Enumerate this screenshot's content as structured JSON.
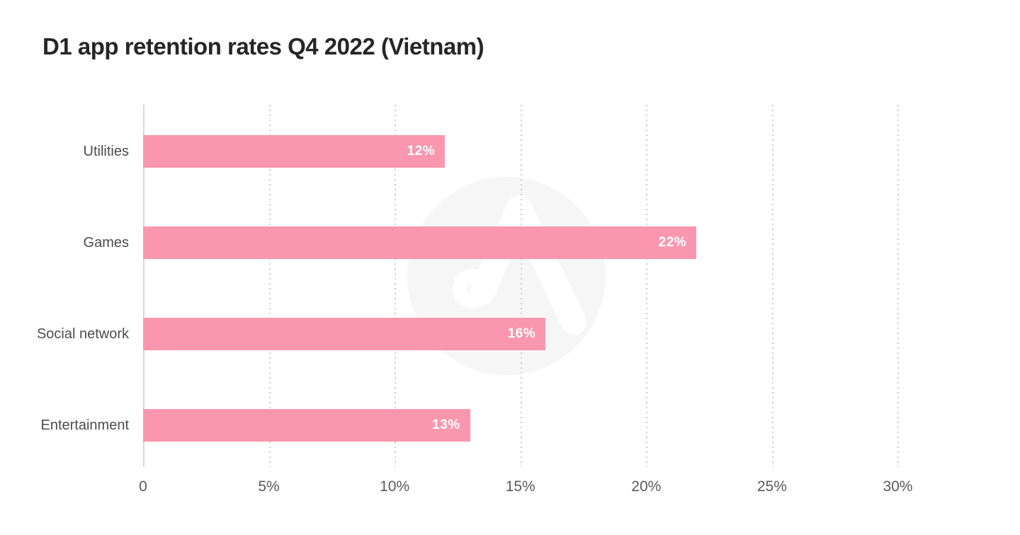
{
  "page": {
    "background": "#ffffff"
  },
  "title": "D1 app retention rates Q4 2022 (Vietnam)",
  "chart_data": {
    "type": "bar",
    "orientation": "horizontal",
    "title": "D1 app retention rates Q4 2022 (Vietnam)",
    "categories": [
      "Utilities",
      "Games",
      "Social network",
      "Entertainment"
    ],
    "values": [
      12,
      22,
      16,
      13
    ],
    "value_labels": [
      "12%",
      "22%",
      "16%",
      "13%"
    ],
    "xlabel": "",
    "ylabel": "",
    "x_ticks": [
      {
        "value": 0,
        "label": "0"
      },
      {
        "value": 5,
        "label": "5%"
      },
      {
        "value": 10,
        "label": "10%"
      },
      {
        "value": 15,
        "label": "15%"
      },
      {
        "value": 20,
        "label": "20%"
      },
      {
        "value": 25,
        "label": "25%"
      },
      {
        "value": 30,
        "label": "30%"
      }
    ],
    "xlim": [
      0,
      33
    ],
    "grid": {
      "vertical": true,
      "style": "dotted",
      "zero_line": "solid"
    },
    "legend": null,
    "watermark": "adapty-logo",
    "colors": {
      "bar": "#FA97AE",
      "value_label": "#FFFFFF",
      "category_label": "#4C4C4C",
      "tick_label": "#5A5A5A",
      "title": "#262626",
      "axis_line": "#D8D8D8",
      "gridline": "#CDCDCD",
      "watermark_circle": "#F6F6F6",
      "watermark_glyph": "#FFFFFF"
    }
  }
}
